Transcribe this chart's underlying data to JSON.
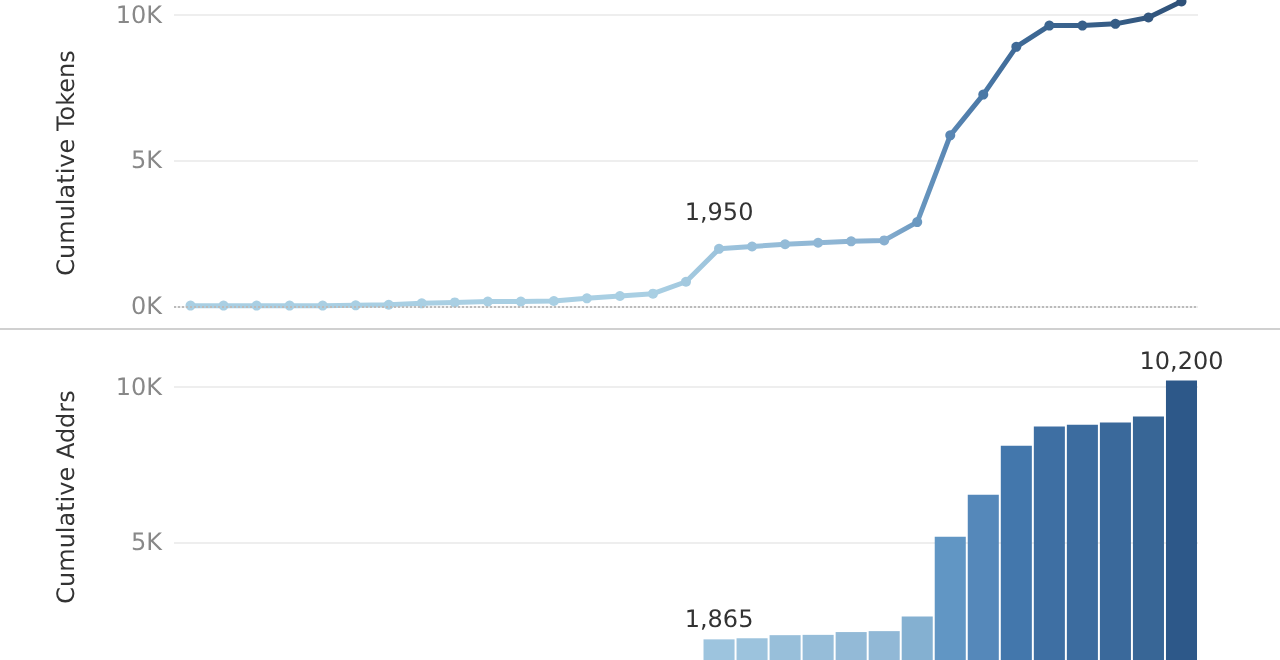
{
  "chart_data": [
    {
      "type": "line",
      "ylabel": "Cumulative Tokens",
      "categories": [
        null,
        null,
        null,
        null,
        null,
        null,
        null,
        null,
        null,
        null,
        null,
        null,
        null,
        null,
        null,
        null,
        null,
        null,
        null,
        null,
        null,
        null,
        null,
        null,
        null,
        null,
        null,
        null,
        null,
        null,
        null
      ],
      "series": [
        {
          "colors": [
            "#a9cfe3",
            "#a9cfe3",
            "#a9cfe3",
            "#a9cfe3",
            "#a9cfe3",
            "#a9cfe3",
            "#a9cfe3",
            "#a9cfe3",
            "#a9cfe3",
            "#a9cfe3",
            "#a9cfe3",
            "#a9cfe3",
            "#a9cfe3",
            "#a9cfe3",
            "#a9cfe3",
            "#a3c9df",
            "#9cc3dc",
            "#98bfda",
            "#94bbd7",
            "#90b7d5",
            "#8cb3d2",
            "#88afd0",
            "#6a98c0",
            "#5986b3",
            "#4a78a6",
            "#3f6a97",
            "#3b6590",
            "#38608a",
            "#355c85",
            "#33577f",
            "#2f5179"
          ],
          "values": [
            0,
            0,
            0,
            0,
            0,
            10,
            30,
            80,
            110,
            140,
            140,
            160,
            250,
            330,
            410,
            820,
            1950,
            2030,
            2110,
            2160,
            2210,
            2240,
            2870,
            5850,
            7250,
            8890,
            9620,
            9620,
            9680,
            9900,
            10450
          ],
          "value_labels": [
            null,
            null,
            null,
            null,
            null,
            null,
            null,
            null,
            null,
            null,
            null,
            null,
            null,
            null,
            null,
            null,
            "1,950",
            null,
            null,
            null,
            null,
            null,
            null,
            null,
            null,
            null,
            null,
            null,
            null,
            null,
            null
          ]
        }
      ],
      "ylim": [
        -700,
        10500
      ],
      "yticks": [
        {
          "value": 0,
          "label": "0K"
        },
        {
          "value": 5000,
          "label": "5K"
        },
        {
          "value": 10000,
          "label": "10K"
        }
      ],
      "grid": "y",
      "marker": "circle",
      "tick_labels": "y",
      "ref_lines": [
        {
          "axis": "y",
          "value": 0,
          "color": "#bbbbbb",
          "line_style": "dotted"
        }
      ]
    },
    {
      "type": "bar",
      "ylabel": "Cumulative Addrs",
      "categories": [
        null,
        null,
        null,
        null,
        null,
        null,
        null,
        null,
        null,
        null,
        null,
        null,
        null,
        null,
        null,
        null,
        null,
        null,
        null,
        null,
        null,
        null,
        null,
        null,
        null,
        null,
        null,
        null,
        null,
        null,
        null
      ],
      "values": [
        null,
        null,
        null,
        null,
        null,
        null,
        null,
        null,
        null,
        null,
        null,
        null,
        null,
        null,
        null,
        null,
        1865,
        1900,
        2000,
        2010,
        2100,
        2130,
        2600,
        5170,
        6520,
        8100,
        8720,
        8780,
        8850,
        9040,
        10200
      ],
      "colors": [
        "#ffffff",
        "#ffffff",
        "#ffffff",
        "#ffffff",
        "#ffffff",
        "#ffffff",
        "#ffffff",
        "#ffffff",
        "#ffffff",
        "#ffffff",
        "#ffffff",
        "#ffffff",
        "#ffffff",
        "#ffffff",
        "#ffffff",
        "#ffffff",
        "#9dc4de",
        "#9cc3dd",
        "#98bfda",
        "#96bdd9",
        "#93bad7",
        "#91b8d6",
        "#84b0d1",
        "#6196c4",
        "#5588ba",
        "#4377ac",
        "#3e6fa3",
        "#3c6c9f",
        "#3a699b",
        "#386696",
        "#2d5889"
      ],
      "value_labels": [
        null,
        null,
        null,
        null,
        null,
        null,
        null,
        null,
        null,
        null,
        null,
        null,
        null,
        null,
        null,
        null,
        "1,865",
        null,
        null,
        null,
        null,
        null,
        null,
        null,
        null,
        null,
        null,
        null,
        null,
        null,
        "10,200"
      ],
      "ylim": [
        1200,
        11700
      ],
      "yticks": [
        {
          "value": 5000,
          "label": "5K"
        },
        {
          "value": 10000,
          "label": "10K"
        }
      ],
      "grid": "y",
      "tick_labels": "y"
    }
  ]
}
